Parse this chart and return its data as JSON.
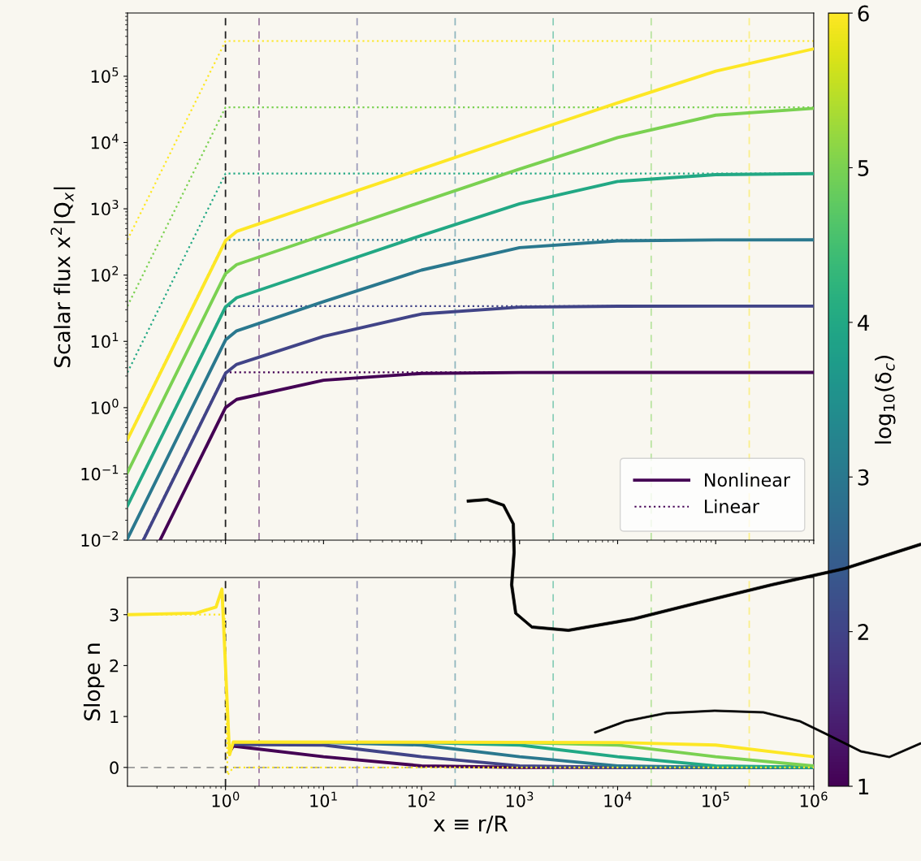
{
  "chart_data": [
    {
      "type": "line",
      "ylabel": "Scalar flux x$^{2}$|Q$_{x}$|",
      "log": "xy",
      "xlim": [
        0.1,
        1000000
      ],
      "ylim": [
        0.01,
        900000
      ],
      "xticks": [
        1,
        10,
        100,
        1000,
        10000,
        100000,
        1000000
      ],
      "yticks": [
        {
          "value": 0.01,
          "label": "10$^{−2}$"
        },
        {
          "value": 0.1,
          "label": "10$^{−1}$"
        },
        {
          "value": 1,
          "label": "10$^{0}$"
        },
        {
          "value": 10,
          "label": "10$^{1}$"
        },
        {
          "value": 100,
          "label": "10$^{2}$"
        },
        {
          "value": 1000,
          "label": "10$^{3}$"
        },
        {
          "value": 10000,
          "label": "10$^{4}$"
        },
        {
          "value": 100000,
          "label": "10$^{5}$"
        }
      ],
      "tick_labels": "y",
      "legend": "lower right",
      "grid": false,
      "clabel": "log$_{10}$(δ$_{c}$)",
      "clim": [
        1,
        6
      ],
      "cticks": [
        1,
        2,
        3,
        4,
        5,
        6
      ],
      "series": [
        {
          "name": "Nonlinear",
          "line_style": "solid",
          "color": "#440154",
          "x": [
            0.215,
            1,
            1.3,
            10,
            100,
            1000,
            10000,
            1000000
          ],
          "values": [
            0.01,
            1.0,
            1.33,
            2.59,
            3.28,
            3.39,
            3.4,
            3.4
          ]
        },
        {
          "line_style": "solid",
          "color": "#414487",
          "x": [
            0.145,
            1,
            1.3,
            10,
            100,
            1000,
            10000,
            100000,
            1000000
          ],
          "values": [
            0.01,
            3.3,
            4.5,
            11.9,
            25.9,
            32.8,
            33.9,
            34,
            34
          ]
        },
        {
          "line_style": "solid",
          "color": "#2a788e",
          "x": [
            0.1,
            1,
            1.3,
            10,
            100,
            1000,
            10000,
            100000,
            1000000
          ],
          "values": [
            0.0105,
            10.5,
            14.4,
            39.7,
            119,
            259,
            328,
            339,
            340
          ]
        },
        {
          "line_style": "solid",
          "color": "#22a884",
          "x": [
            0.1,
            1,
            1.3,
            10,
            100,
            1000,
            10000,
            100000,
            1000000
          ],
          "values": [
            0.033,
            33,
            45.6,
            126,
            397,
            1190,
            2590,
            3280,
            3390
          ]
        },
        {
          "line_style": "solid",
          "color": "#7ad151",
          "x": [
            0.1,
            1,
            1.3,
            10,
            100,
            1000,
            10000,
            100000,
            1000000
          ],
          "values": [
            0.105,
            105,
            144,
            400,
            1270,
            3970,
            11900,
            25900,
            32800
          ]
        },
        {
          "line_style": "solid",
          "color": "#fde725",
          "x": [
            0.1,
            1,
            1.3,
            10,
            100,
            1000,
            10000,
            100000,
            1000000
          ],
          "values": [
            0.33,
            330,
            456,
            1270,
            4000,
            12700,
            39700,
            119000,
            259000
          ]
        },
        {
          "name": "Linear",
          "line_style": "dotted",
          "color": "#440154",
          "x": [
            0.143,
            1,
            1000000
          ],
          "values": [
            0.01,
            3.4,
            3.4
          ]
        },
        {
          "line_style": "dotted",
          "color": "#414487",
          "x": [
            0.1,
            1,
            1000000
          ],
          "values": [
            0.034,
            34,
            34
          ]
        },
        {
          "line_style": "dotted",
          "color": "#2a788e",
          "x": [
            0.1,
            1,
            1000000
          ],
          "values": [
            0.34,
            340,
            340
          ]
        },
        {
          "line_style": "dotted",
          "color": "#22a884",
          "x": [
            0.1,
            1,
            1000000
          ],
          "values": [
            3.4,
            3400,
            3400
          ]
        },
        {
          "line_style": "dotted",
          "color": "#7ad151",
          "x": [
            0.1,
            1,
            1000000
          ],
          "values": [
            34,
            34000,
            34000
          ]
        },
        {
          "line_style": "dotted",
          "color": "#fde725",
          "x": [
            0.1,
            1,
            1000000
          ],
          "values": [
            340,
            340000,
            340000
          ]
        }
      ],
      "ref_lines": [
        {
          "axis": "x",
          "value": 1,
          "color": "#222222",
          "line_style": "dashed"
        },
        {
          "axis": "x",
          "value": 2.2,
          "color": "#9e7ca2",
          "line_style": "dashed"
        },
        {
          "axis": "x",
          "value": 22,
          "color": "#9d9dbb",
          "line_style": "dashed"
        },
        {
          "axis": "x",
          "value": 220,
          "color": "#91b7bf",
          "line_style": "dashed"
        },
        {
          "axis": "x",
          "value": 2200,
          "color": "#8dcfba",
          "line_style": "dashed"
        },
        {
          "axis": "x",
          "value": 22000,
          "color": "#b9e4a0",
          "line_style": "dashed"
        },
        {
          "axis": "x",
          "value": 220000,
          "color": "#fbef8a",
          "line_style": "dashed"
        }
      ]
    },
    {
      "type": "line",
      "ylabel": "Slope n",
      "xlabel": "x ≡ r/R",
      "log": "x",
      "xlim": [
        0.1,
        1000000
      ],
      "ylim": [
        -0.37,
        3.73
      ],
      "xticks": [
        {
          "value": 1,
          "label": "10$^{0}$"
        },
        {
          "value": 10,
          "label": "10$^{1}$"
        },
        {
          "value": 100,
          "label": "10$^{2}$"
        },
        {
          "value": 1000,
          "label": "10$^{3}$"
        },
        {
          "value": 10000,
          "label": "10$^{4}$"
        },
        {
          "value": 100000,
          "label": "10$^{5}$"
        },
        {
          "value": 1000000,
          "label": "10$^{6}$"
        }
      ],
      "yticks": [
        0,
        1,
        2,
        3
      ],
      "grid": false,
      "series": [
        {
          "line_style": "dotted",
          "color": "#fde725",
          "x": [
            0.1,
            0.98,
            1.05,
            1.2,
            1000000
          ],
          "values": [
            3,
            3,
            -0.15,
            0,
            0
          ]
        },
        {
          "line_style": "solid",
          "color": "#440154",
          "x": [
            1.1,
            1.2,
            10,
            100,
            1000,
            1000000
          ],
          "values": [
            0.3,
            0.42,
            0.21,
            0.03,
            0,
            0
          ]
        },
        {
          "line_style": "solid",
          "color": "#414487",
          "x": [
            1.2,
            10,
            100,
            1000,
            10000,
            1000000
          ],
          "values": [
            0.45,
            0.44,
            0.21,
            0.03,
            0,
            0
          ]
        },
        {
          "line_style": "solid",
          "color": "#2a788e",
          "x": [
            10,
            100,
            1000,
            10000,
            100000,
            1000000
          ],
          "values": [
            0.49,
            0.44,
            0.21,
            0.03,
            0,
            0
          ]
        },
        {
          "line_style": "solid",
          "color": "#22a884",
          "x": [
            100,
            1000,
            10000,
            100000,
            1000000
          ],
          "values": [
            0.49,
            0.44,
            0.21,
            0.03,
            0
          ]
        },
        {
          "line_style": "solid",
          "color": "#7ad151",
          "x": [
            1000,
            10000,
            100000,
            1000000
          ],
          "values": [
            0.49,
            0.44,
            0.21,
            0.03
          ]
        },
        {
          "line_style": "solid",
          "color": "#fde725",
          "x": [
            0.1,
            0.5,
            0.8,
            0.92,
            1.1,
            1.2,
            10000,
            100000,
            1000000
          ],
          "values": [
            3,
            3.03,
            3.15,
            3.5,
            0.25,
            0.5,
            0.49,
            0.44,
            0.21
          ]
        }
      ],
      "ref_lines": [
        {
          "axis": "y",
          "value": 0,
          "color": "#999999",
          "line_style": "dashed"
        },
        {
          "axis": "x",
          "value": 1,
          "color": "#222222",
          "line_style": "dashed"
        },
        {
          "axis": "x",
          "value": 2.2,
          "color": "#9e7ca2",
          "line_style": "dashed"
        },
        {
          "axis": "x",
          "value": 22,
          "color": "#9d9dbb",
          "line_style": "dashed"
        },
        {
          "axis": "x",
          "value": 220,
          "color": "#91b7bf",
          "line_style": "dashed"
        },
        {
          "axis": "x",
          "value": 2200,
          "color": "#8dcfba",
          "line_style": "dashed"
        },
        {
          "axis": "x",
          "value": 22000,
          "color": "#b9e4a0",
          "line_style": "dashed"
        },
        {
          "axis": "x",
          "value": 220000,
          "color": "#fbef8a",
          "line_style": "dashed"
        }
      ]
    }
  ]
}
